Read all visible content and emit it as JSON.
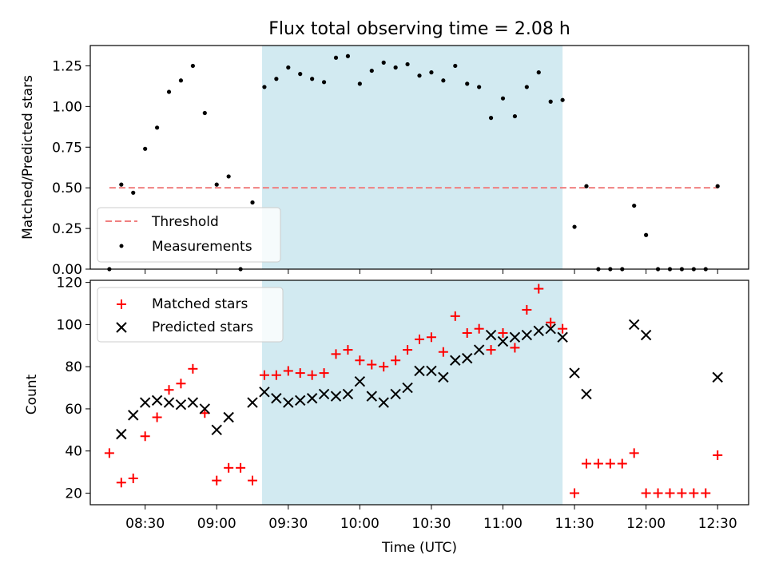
{
  "chart_data": [
    {
      "type": "scatter",
      "title": "Flux total observing time = 2.08 h",
      "xlabel": "",
      "ylabel": "Matched/Predicted stars",
      "xlim": [
        "08:07",
        "12:43"
      ],
      "ylim": [
        0,
        1.375
      ],
      "yticks": [
        0.0,
        0.25,
        0.5,
        0.75,
        1.0,
        1.25
      ],
      "ytick_labels": [
        "0.00",
        "0.25",
        "0.50",
        "0.75",
        "1.00",
        "1.25"
      ],
      "highlight": {
        "x_start": "09:19",
        "x_end": "11:25",
        "color": "#add8e6"
      },
      "threshold": {
        "name": "Threshold",
        "value": 0.5,
        "x_start": "08:15",
        "x_end": "12:30",
        "color": "#f08080",
        "style": "dashed"
      },
      "legend": {
        "placement": "lower-left",
        "entries": [
          "Threshold",
          "Measurements"
        ]
      },
      "series": [
        {
          "name": "Measurements",
          "color": "#000000",
          "marker": "dot",
          "x": [
            "08:15",
            "08:20",
            "08:25",
            "08:30",
            "08:35",
            "08:40",
            "08:45",
            "08:50",
            "08:55",
            "09:00",
            "09:05",
            "09:10",
            "09:15",
            "09:20",
            "09:25",
            "09:30",
            "09:35",
            "09:40",
            "09:45",
            "09:50",
            "09:55",
            "10:00",
            "10:05",
            "10:10",
            "10:15",
            "10:20",
            "10:25",
            "10:30",
            "10:35",
            "10:40",
            "10:45",
            "10:50",
            "10:55",
            "11:00",
            "11:05",
            "11:10",
            "11:15",
            "11:20",
            "11:25",
            "11:30",
            "11:35",
            "11:40",
            "11:45",
            "11:50",
            "11:55",
            "12:00",
            "12:05",
            "12:10",
            "12:15",
            "12:20",
            "12:25",
            "12:30"
          ],
          "y": [
            0.0,
            0.52,
            0.47,
            0.74,
            0.87,
            1.09,
            1.16,
            1.25,
            0.96,
            0.52,
            0.57,
            0.0,
            0.41,
            1.12,
            1.17,
            1.24,
            1.2,
            1.17,
            1.15,
            1.3,
            1.31,
            1.14,
            1.22,
            1.27,
            1.24,
            1.26,
            1.19,
            1.21,
            1.16,
            1.25,
            1.14,
            1.12,
            0.93,
            1.05,
            0.94,
            1.12,
            1.21,
            1.03,
            1.04,
            0.26,
            0.51,
            0.0,
            0.0,
            0.0,
            0.39,
            0.21,
            0.0,
            0.0,
            0.0,
            0.0,
            0.0,
            0.51
          ]
        }
      ]
    },
    {
      "type": "scatter",
      "title": "",
      "xlabel": "Time (UTC)",
      "ylabel": "Count",
      "xlim": [
        "08:07",
        "12:43"
      ],
      "ylim": [
        14.5,
        121
      ],
      "yticks": [
        20,
        40,
        60,
        80,
        100,
        120
      ],
      "ytick_labels": [
        "20",
        "40",
        "60",
        "80",
        "100",
        "120"
      ],
      "xticks": [
        "08:30",
        "09:00",
        "09:30",
        "10:00",
        "10:30",
        "11:00",
        "11:30",
        "12:00",
        "12:30"
      ],
      "xtick_labels": [
        "08:30",
        "09:00",
        "09:30",
        "10:00",
        "10:30",
        "11:00",
        "11:30",
        "12:00",
        "12:30"
      ],
      "highlight": {
        "x_start": "09:19",
        "x_end": "11:25",
        "color": "#add8e6"
      },
      "legend": {
        "placement": "top-left",
        "entries": [
          "Matched stars",
          "Predicted stars"
        ]
      },
      "series": [
        {
          "name": "Matched stars",
          "color": "#ff0000",
          "marker": "plus",
          "x": [
            "08:15",
            "08:20",
            "08:25",
            "08:30",
            "08:35",
            "08:40",
            "08:45",
            "08:50",
            "08:55",
            "09:00",
            "09:05",
            "09:10",
            "09:15",
            "09:20",
            "09:25",
            "09:30",
            "09:35",
            "09:40",
            "09:45",
            "09:50",
            "09:55",
            "10:00",
            "10:05",
            "10:10",
            "10:15",
            "10:20",
            "10:25",
            "10:30",
            "10:35",
            "10:40",
            "10:45",
            "10:50",
            "10:55",
            "11:00",
            "11:05",
            "11:10",
            "11:15",
            "11:20",
            "11:25",
            "11:30",
            "11:35",
            "11:40",
            "11:45",
            "11:50",
            "11:55",
            "12:00",
            "12:05",
            "12:10",
            "12:15",
            "12:20",
            "12:25",
            "12:30"
          ],
          "y": [
            39,
            25,
            27,
            47,
            56,
            69,
            72,
            79,
            58,
            26,
            32,
            32,
            26,
            76,
            76,
            78,
            77,
            76,
            77,
            86,
            88,
            83,
            81,
            80,
            83,
            88,
            93,
            94,
            87,
            104,
            96,
            98,
            88,
            96,
            89,
            107,
            117,
            101,
            98,
            20,
            34,
            34,
            34,
            34,
            39,
            20,
            20,
            20,
            20,
            20,
            20,
            38
          ]
        },
        {
          "name": "Predicted stars",
          "color": "#000000",
          "marker": "x",
          "x": [
            "08:20",
            "08:25",
            "08:30",
            "08:35",
            "08:40",
            "08:45",
            "08:50",
            "08:55",
            "09:00",
            "09:05",
            "09:15",
            "09:20",
            "09:25",
            "09:30",
            "09:35",
            "09:40",
            "09:45",
            "09:50",
            "09:55",
            "10:00",
            "10:05",
            "10:10",
            "10:15",
            "10:20",
            "10:25",
            "10:30",
            "10:35",
            "10:40",
            "10:45",
            "10:50",
            "10:55",
            "11:00",
            "11:05",
            "11:10",
            "11:15",
            "11:20",
            "11:25",
            "11:30",
            "11:35",
            "11:55",
            "12:00",
            "12:30"
          ],
          "y": [
            48,
            57,
            63,
            64,
            63,
            62,
            63,
            60,
            50,
            56,
            63,
            68,
            65,
            63,
            64,
            65,
            67,
            66,
            67,
            73,
            66,
            63,
            67,
            70,
            78,
            78,
            75,
            83,
            84,
            88,
            95,
            92,
            94,
            95,
            97,
            98,
            94,
            77,
            67,
            100,
            95,
            75
          ]
        }
      ]
    }
  ]
}
